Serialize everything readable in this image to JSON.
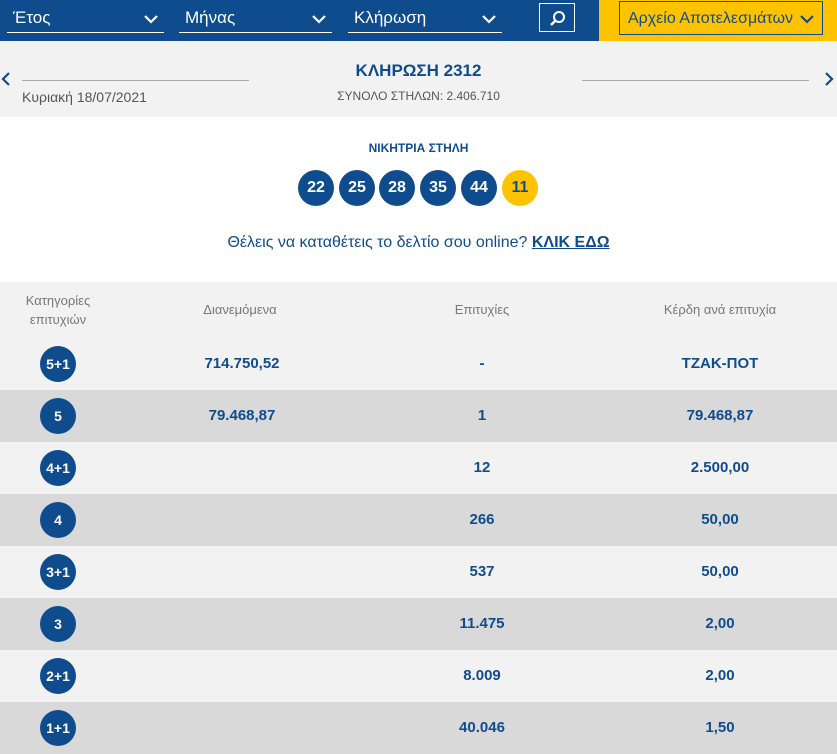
{
  "filters": {
    "year_label": "Έτος",
    "month_label": "Μήνας",
    "draw_label": "Κλήρωση",
    "archive_label": "Αρχείο Αποτελεσμάτων"
  },
  "draw": {
    "title": "ΚΛΗΡΩΣΗ 2312",
    "date": "Κυριακή 18/07/2021",
    "total_columns": "ΣΥΝΟΛΟ ΣΤΗΛΩΝ: 2.406.710"
  },
  "winning": {
    "title": "ΝΙΚΗΤΡΙΑ ΣΤΗΛΗ",
    "numbers": [
      "22",
      "25",
      "28",
      "35",
      "44"
    ],
    "joker": "11"
  },
  "promo": {
    "text": "Θέλεις να καταθέτεις το δελτίο σου online?",
    "link": "ΚΛΙΚ ΕΔΩ"
  },
  "table": {
    "headers": {
      "category_line1": "Κατηγορίες",
      "category_line2": "επιτυχιών",
      "distributed": "Διανεμόμενα",
      "winners": "Επιτυχίες",
      "gain": "Κέρδη ανά επιτυχία"
    },
    "rows": [
      {
        "category": "5+1",
        "distributed": "714.750,52",
        "winners": "-",
        "gain": "ΤΖΑΚ-ΠΟΤ"
      },
      {
        "category": "5",
        "distributed": "79.468,87",
        "winners": "1",
        "gain": "79.468,87"
      },
      {
        "category": "4+1",
        "distributed": "",
        "winners": "12",
        "gain": "2.500,00"
      },
      {
        "category": "4",
        "distributed": "",
        "winners": "266",
        "gain": "50,00"
      },
      {
        "category": "3+1",
        "distributed": "",
        "winners": "537",
        "gain": "50,00"
      },
      {
        "category": "3",
        "distributed": "",
        "winners": "11.475",
        "gain": "2,00"
      },
      {
        "category": "2+1",
        "distributed": "",
        "winners": "8.009",
        "gain": "2,00"
      },
      {
        "category": "1+1",
        "distributed": "",
        "winners": "40.046",
        "gain": "1,50"
      }
    ]
  },
  "colors": {
    "brand_blue": "#0f4c8e",
    "accent_yellow": "#fdc300"
  }
}
